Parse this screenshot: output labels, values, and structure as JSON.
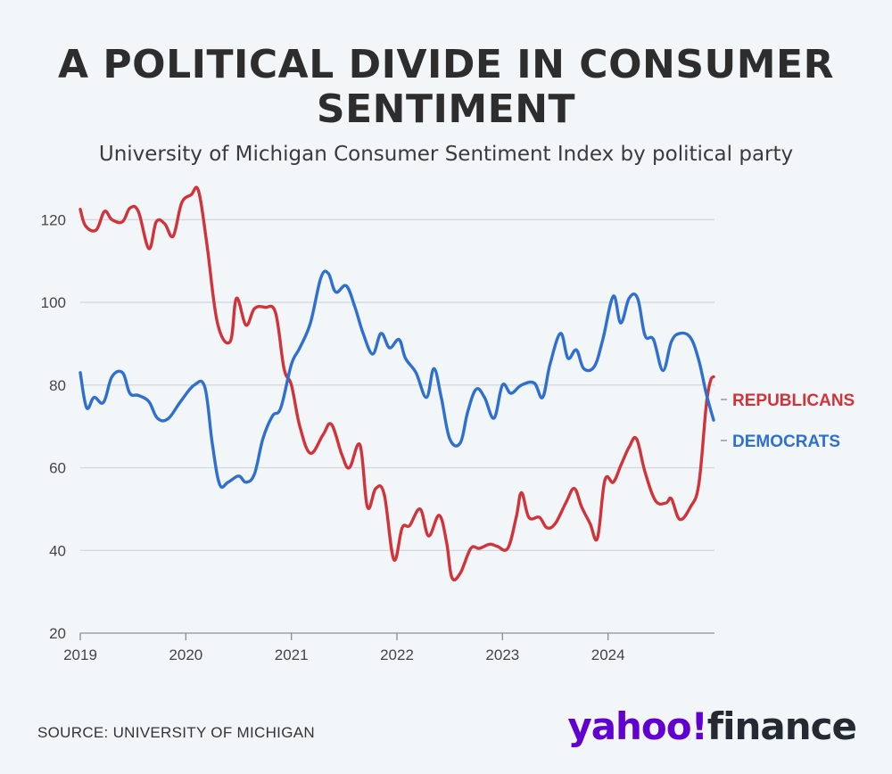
{
  "header": {
    "title": "A POLITICAL DIVIDE IN CONSUMER SENTIMENT",
    "subtitle": "University of Michigan Consumer Sentiment Index by political party"
  },
  "footer": {
    "source": "SOURCE: UNIVERSITY OF MICHIGAN",
    "logo_yahoo": "yahoo!",
    "logo_finance": "finance"
  },
  "colors": {
    "republicans": "#d1333a",
    "democrats": "#2f6fd0",
    "grid": "#d4d9df"
  },
  "chart_data": {
    "type": "line",
    "title": "A POLITICAL DIVIDE IN CONSUMER SENTIMENT",
    "subtitle": "University of Michigan Consumer Sentiment Index by political party",
    "xlabel": "",
    "ylabel": "",
    "x_range": [
      2019.0,
      2025.0
    ],
    "ylim": [
      20,
      130
    ],
    "y_ticks": [
      20,
      40,
      60,
      80,
      100,
      120
    ],
    "x_ticks": [
      2019,
      2020,
      2021,
      2022,
      2023,
      2024
    ],
    "x_tick_labels": [
      "2019",
      "2020",
      "2021",
      "2022",
      "2023",
      "2024"
    ],
    "grid": true,
    "series": [
      {
        "name": "REPUBLICANS",
        "label": "REPUBLICANS",
        "color": "#d1333a",
        "points": [
          [
            2019.0,
            122.5
          ],
          [
            2019.05,
            118.5
          ],
          [
            2019.15,
            117.5
          ],
          [
            2019.23,
            122
          ],
          [
            2019.3,
            120
          ],
          [
            2019.4,
            119.5
          ],
          [
            2019.47,
            122.8
          ],
          [
            2019.55,
            122
          ],
          [
            2019.65,
            113
          ],
          [
            2019.72,
            119.5
          ],
          [
            2019.8,
            119
          ],
          [
            2019.88,
            116
          ],
          [
            2019.96,
            124
          ],
          [
            2020.05,
            126
          ],
          [
            2020.12,
            127
          ],
          [
            2020.2,
            114
          ],
          [
            2020.3,
            95
          ],
          [
            2020.42,
            90.5
          ],
          [
            2020.48,
            101
          ],
          [
            2020.57,
            94.5
          ],
          [
            2020.65,
            98.5
          ],
          [
            2020.75,
            98.8
          ],
          [
            2020.85,
            97.5
          ],
          [
            2020.93,
            84
          ],
          [
            2021.0,
            80
          ],
          [
            2021.08,
            70
          ],
          [
            2021.18,
            63.5
          ],
          [
            2021.3,
            68
          ],
          [
            2021.38,
            70.5
          ],
          [
            2021.48,
            63
          ],
          [
            2021.55,
            60
          ],
          [
            2021.65,
            65.5
          ],
          [
            2021.72,
            50.5
          ],
          [
            2021.8,
            55
          ],
          [
            2021.88,
            53.5
          ],
          [
            2021.97,
            37.8
          ],
          [
            2022.05,
            45.5
          ],
          [
            2022.12,
            46
          ],
          [
            2022.22,
            50
          ],
          [
            2022.3,
            43.5
          ],
          [
            2022.4,
            48.5
          ],
          [
            2022.47,
            42
          ],
          [
            2022.52,
            33.5
          ],
          [
            2022.6,
            34.5
          ],
          [
            2022.7,
            40.5
          ],
          [
            2022.78,
            40.5
          ],
          [
            2022.88,
            41.5
          ],
          [
            2022.95,
            41
          ],
          [
            2023.05,
            40.5
          ],
          [
            2023.13,
            48
          ],
          [
            2023.18,
            54
          ],
          [
            2023.25,
            48
          ],
          [
            2023.35,
            48
          ],
          [
            2023.42,
            45.5
          ],
          [
            2023.5,
            46.5
          ],
          [
            2023.6,
            51.5
          ],
          [
            2023.68,
            55
          ],
          [
            2023.75,
            50.5
          ],
          [
            2023.83,
            46.5
          ],
          [
            2023.9,
            43
          ],
          [
            2023.97,
            57
          ],
          [
            2024.05,
            56.5
          ],
          [
            2024.12,
            60.5
          ],
          [
            2024.2,
            65
          ],
          [
            2024.27,
            67
          ],
          [
            2024.35,
            59
          ],
          [
            2024.45,
            52
          ],
          [
            2024.55,
            51.5
          ],
          [
            2024.6,
            52.5
          ],
          [
            2024.68,
            47.5
          ],
          [
            2024.78,
            50.5
          ],
          [
            2024.86,
            56
          ],
          [
            2024.93,
            75
          ],
          [
            2024.97,
            81
          ],
          [
            2025.0,
            82
          ]
        ]
      },
      {
        "name": "DEMOCRATS",
        "label": "DEMOCRATS",
        "color": "#2f6fd0",
        "points": [
          [
            2019.0,
            83
          ],
          [
            2019.06,
            74.5
          ],
          [
            2019.13,
            77
          ],
          [
            2019.22,
            75.8
          ],
          [
            2019.3,
            82
          ],
          [
            2019.4,
            83
          ],
          [
            2019.47,
            78
          ],
          [
            2019.55,
            77.5
          ],
          [
            2019.65,
            76
          ],
          [
            2019.73,
            72
          ],
          [
            2019.83,
            71.8
          ],
          [
            2019.95,
            76
          ],
          [
            2020.08,
            80
          ],
          [
            2020.18,
            79.5
          ],
          [
            2020.25,
            66
          ],
          [
            2020.32,
            56
          ],
          [
            2020.4,
            56.5
          ],
          [
            2020.5,
            58
          ],
          [
            2020.57,
            56.5
          ],
          [
            2020.65,
            58.5
          ],
          [
            2020.73,
            67
          ],
          [
            2020.82,
            72.5
          ],
          [
            2020.9,
            74.5
          ],
          [
            2021.0,
            85
          ],
          [
            2021.08,
            89
          ],
          [
            2021.18,
            95
          ],
          [
            2021.28,
            106
          ],
          [
            2021.35,
            107
          ],
          [
            2021.42,
            102.5
          ],
          [
            2021.52,
            104
          ],
          [
            2021.6,
            99
          ],
          [
            2021.68,
            92.5
          ],
          [
            2021.77,
            87.5
          ],
          [
            2021.85,
            92.5
          ],
          [
            2021.93,
            89
          ],
          [
            2022.02,
            91
          ],
          [
            2022.08,
            86.5
          ],
          [
            2022.18,
            83
          ],
          [
            2022.28,
            77
          ],
          [
            2022.35,
            84
          ],
          [
            2022.42,
            77
          ],
          [
            2022.5,
            67
          ],
          [
            2022.6,
            66
          ],
          [
            2022.67,
            73.5
          ],
          [
            2022.75,
            79
          ],
          [
            2022.83,
            77
          ],
          [
            2022.92,
            72
          ],
          [
            2023.0,
            80
          ],
          [
            2023.08,
            78
          ],
          [
            2023.18,
            80
          ],
          [
            2023.3,
            80.5
          ],
          [
            2023.38,
            77
          ],
          [
            2023.45,
            85
          ],
          [
            2023.55,
            92.5
          ],
          [
            2023.62,
            86.5
          ],
          [
            2023.7,
            88.5
          ],
          [
            2023.77,
            84
          ],
          [
            2023.87,
            84.5
          ],
          [
            2023.95,
            91
          ],
          [
            2024.05,
            101.5
          ],
          [
            2024.12,
            95
          ],
          [
            2024.2,
            101
          ],
          [
            2024.28,
            101
          ],
          [
            2024.35,
            92
          ],
          [
            2024.43,
            91
          ],
          [
            2024.52,
            83.5
          ],
          [
            2024.6,
            90.5
          ],
          [
            2024.68,
            92.5
          ],
          [
            2024.78,
            91.5
          ],
          [
            2024.86,
            86
          ],
          [
            2024.93,
            78
          ],
          [
            2025.0,
            71.5
          ]
        ]
      }
    ]
  }
}
